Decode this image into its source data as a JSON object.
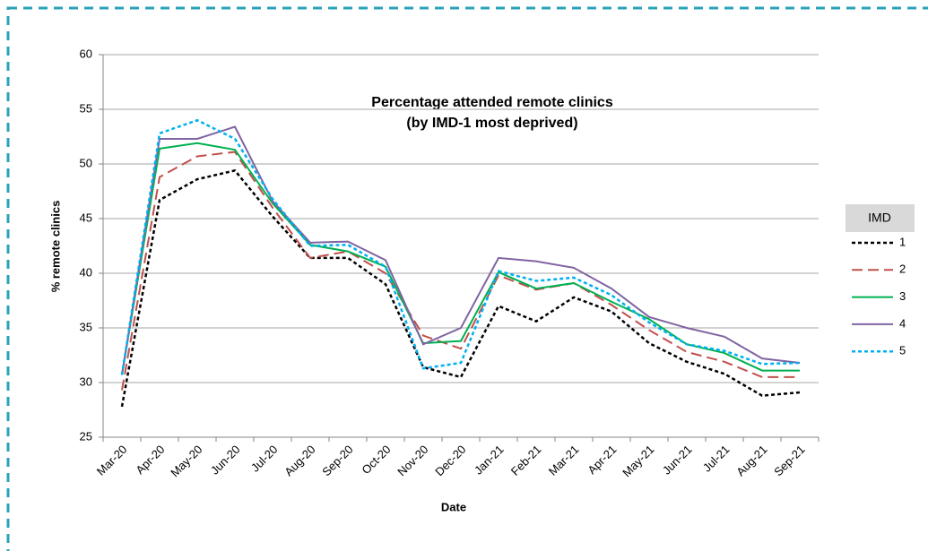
{
  "chart_data": {
    "type": "line",
    "title": "Percentage attended remote clinics",
    "subtitle": "(by IMD-1 most deprived)",
    "x_label": "Date",
    "y_label": "% remote clinics",
    "legend_title": "IMD",
    "legend_position": "right",
    "grid": true,
    "categories": [
      "Mar-20",
      "Apr-20",
      "May-20",
      "Jun-20",
      "Jul-20",
      "Aug-20",
      "Sep-20",
      "Oct-20",
      "Nov-20",
      "Dec-20",
      "Jan-21",
      "Feb-21",
      "Mar-21",
      "Apr-21",
      "May-21",
      "Jun-21",
      "Jul-21",
      "Aug-21",
      "Sep-21"
    ],
    "ylim": [
      25,
      60
    ],
    "yticks": [
      25,
      30,
      35,
      40,
      45,
      50,
      55,
      60
    ],
    "series": [
      {
        "name": "1",
        "color": "#000000",
        "dash": "dotted",
        "values": [
          27.8,
          46.7,
          48.6,
          49.4,
          45.2,
          41.4,
          41.4,
          39.0,
          31.4,
          30.5,
          37.0,
          35.6,
          37.8,
          36.5,
          33.6,
          31.9,
          30.8,
          28.8,
          29.1
        ]
      },
      {
        "name": "2",
        "color": "#c0504d",
        "dash": "dashed",
        "values": [
          29.3,
          48.8,
          50.7,
          51.1,
          46.0,
          41.4,
          42.0,
          40.0,
          34.3,
          33.1,
          39.8,
          38.5,
          39.1,
          37.1,
          34.8,
          32.8,
          31.9,
          30.5,
          30.5
        ]
      },
      {
        "name": "3",
        "color": "#00b050",
        "dash": "solid",
        "values": [
          30.7,
          51.4,
          51.9,
          51.3,
          46.4,
          42.6,
          42.0,
          40.6,
          33.6,
          33.8,
          40.1,
          38.6,
          39.1,
          37.4,
          35.8,
          33.5,
          32.7,
          31.1,
          31.1
        ]
      },
      {
        "name": "4",
        "color": "#8064a2",
        "dash": "solid",
        "values": [
          30.7,
          52.3,
          52.3,
          53.4,
          46.6,
          42.8,
          42.9,
          41.2,
          33.5,
          35.0,
          41.4,
          41.1,
          40.5,
          38.6,
          36.0,
          35.0,
          34.2,
          32.2,
          31.8
        ]
      },
      {
        "name": "5",
        "color": "#00b0f0",
        "dash": "dotted",
        "values": [
          30.7,
          52.8,
          54.0,
          52.3,
          46.8,
          42.5,
          42.6,
          40.6,
          31.3,
          31.8,
          40.2,
          39.3,
          39.6,
          38.0,
          35.5,
          33.5,
          32.9,
          31.7,
          31.8
        ]
      }
    ]
  }
}
